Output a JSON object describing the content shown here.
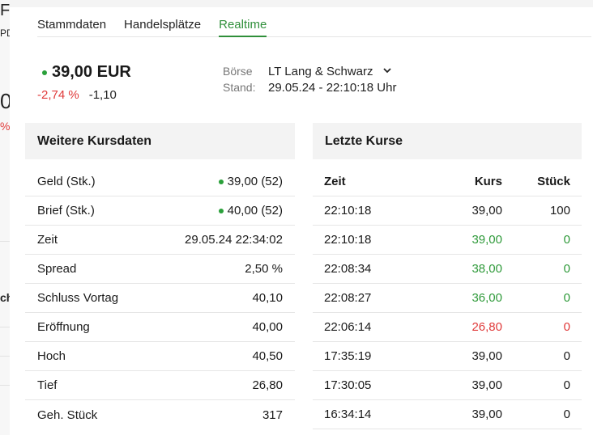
{
  "tabs": [
    {
      "label": "Stammdaten"
    },
    {
      "label": "Handelsplätze"
    },
    {
      "label": "Realtime"
    }
  ],
  "background_fragments": [
    "F",
    "PD",
    "0",
    "%",
    "ch"
  ],
  "price": {
    "value": "39,00 EUR",
    "change_pct": "-2,74 %",
    "change_abs": "-1,10"
  },
  "exchange": {
    "label": "Börse",
    "value": "LT Lang & Schwarz",
    "stand_label": "Stand:",
    "stand_value": "29.05.24 - 22:10:18 Uhr"
  },
  "weitere": {
    "title": "Weitere Kursdaten",
    "rows": [
      {
        "label": "Geld (Stk.)",
        "value": "39,00 (52)"
      },
      {
        "label": "Brief (Stk.)",
        "value": "40,00 (52)"
      },
      {
        "label": "Zeit",
        "value": "29.05.24 22:34:02"
      },
      {
        "label": "Spread",
        "value": "2,50 %"
      },
      {
        "label": "Schluss Vortag",
        "value": "40,10"
      },
      {
        "label": "Eröffnung",
        "value": "40,00"
      },
      {
        "label": "Hoch",
        "value": "40,50"
      },
      {
        "label": "Tief",
        "value": "26,80"
      },
      {
        "label": "Geh. Stück",
        "value": "317"
      }
    ]
  },
  "letzte": {
    "title": "Letzte Kurse",
    "headers": {
      "zeit": "Zeit",
      "kurs": "Kurs",
      "stueck": "Stück"
    },
    "rows": [
      {
        "zeit": "22:10:18",
        "kurs": "39,00",
        "stueck": "100"
      },
      {
        "zeit": "22:10:18",
        "kurs": "39,00",
        "stueck": "0"
      },
      {
        "zeit": "22:08:34",
        "kurs": "38,00",
        "stueck": "0"
      },
      {
        "zeit": "22:08:27",
        "kurs": "36,00",
        "stueck": "0"
      },
      {
        "zeit": "22:06:14",
        "kurs": "26,80",
        "stueck": "0"
      },
      {
        "zeit": "17:35:19",
        "kurs": "39,00",
        "stueck": "0"
      },
      {
        "zeit": "17:30:05",
        "kurs": "39,00",
        "stueck": "0"
      },
      {
        "zeit": "16:34:14",
        "kurs": "39,00",
        "stueck": "0"
      }
    ]
  },
  "colors": {
    "accent": "#2f8f3a",
    "up": "#2f9a3a",
    "down": "#e03a3a",
    "header_bg": "#f3f3f3"
  }
}
